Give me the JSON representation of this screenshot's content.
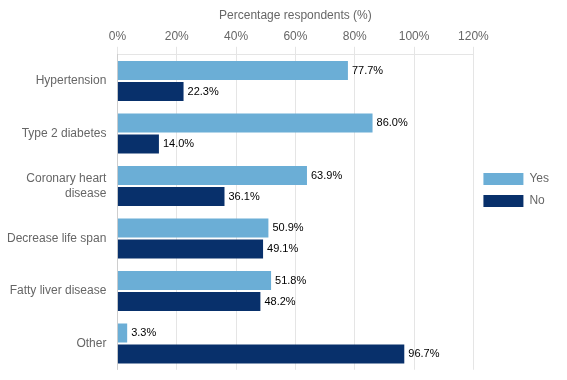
{
  "chart_data": {
    "type": "bar",
    "orientation": "horizontal",
    "x_label": "Percentage respondents (%)",
    "categories": [
      "Hypertension",
      "Type 2 diabetes",
      "Coronary heart\ndisease",
      "Decrease life span",
      "Fatty liver disease",
      "Other"
    ],
    "series": [
      {
        "name": "Yes",
        "color": "#6baed6",
        "values": [
          77.7,
          86.0,
          63.9,
          50.9,
          51.8,
          3.3
        ],
        "value_labels": [
          "77.7%",
          "86.0%",
          "63.9%",
          "50.9%",
          "51.8%",
          "3.3%"
        ]
      },
      {
        "name": "No",
        "color": "#08306b",
        "values": [
          22.3,
          14.0,
          36.1,
          49.1,
          48.2,
          96.7
        ],
        "value_labels": [
          "22.3%",
          "14.0%",
          "36.1%",
          "49.1%",
          "48.2%",
          "96.7%"
        ]
      }
    ],
    "xlim": [
      0,
      120
    ],
    "xticks": [
      {
        "value": 0,
        "label": "0%"
      },
      {
        "value": 20,
        "label": "20%"
      },
      {
        "value": 40,
        "label": "40%"
      },
      {
        "value": 60,
        "label": "60%"
      },
      {
        "value": 80,
        "label": "80%"
      },
      {
        "value": 100,
        "label": "100%"
      },
      {
        "value": 120,
        "label": "120%"
      }
    ],
    "grid": true,
    "legend": "right",
    "data_labels": true
  }
}
